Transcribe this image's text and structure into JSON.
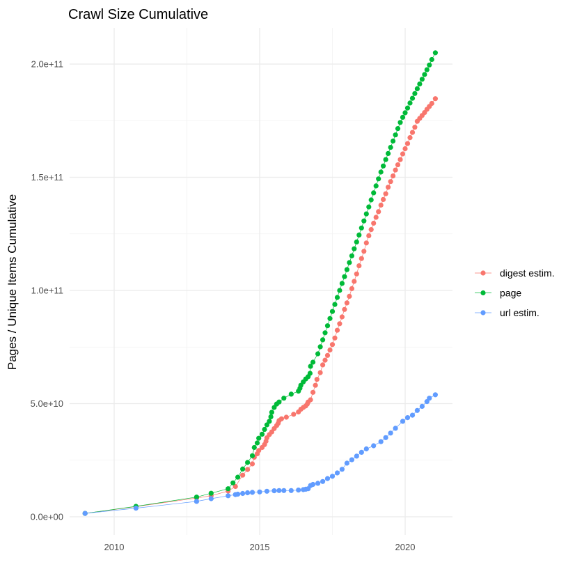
{
  "chart_data": {
    "type": "line",
    "title": "Crawl Size Cumulative",
    "xlabel": "",
    "ylabel": "Pages / Unique Items Cumulative",
    "x_ticks": [
      "2010",
      "2015",
      "2020"
    ],
    "y_ticks": [
      "0.0e+00",
      "5.0e+10",
      "1.0e+11",
      "1.5e+11",
      "2.0e+11"
    ],
    "y_tick_values": [
      0,
      50000000000.0,
      100000000000.0,
      150000000000.0,
      200000000000.0
    ],
    "x_tick_values": [
      "2010-01",
      "2015-01",
      "2020-01"
    ],
    "xlim": [
      "2008-07",
      "2021-08"
    ],
    "ylim": [
      -8000000000.0,
      216000000000.0
    ],
    "grid": true,
    "markers": true,
    "legend_position": "right",
    "series": [
      {
        "name": "digest estim.",
        "color": "#F8766D",
        "points": [
          [
            "2009-01",
            1500000000.0
          ],
          [
            "2010-10",
            4500000000.0
          ],
          [
            "2012-11",
            8300000000.0
          ],
          [
            "2013-05",
            9300000000.0
          ],
          [
            "2013-12",
            11400000000.0
          ],
          [
            "2014-03",
            13400000000.0
          ],
          [
            "2014-06",
            18400000000.0
          ],
          [
            "2014-08",
            20900000000.0
          ],
          [
            "2014-10",
            23400000000.0
          ],
          [
            "2014-10-25",
            26300000000.0
          ],
          [
            "2014-12",
            27800000000.0
          ],
          [
            "2014-12-20",
            29300000000.0
          ],
          [
            "2015-02",
            30600000000.0
          ],
          [
            "2015-03",
            31900000000.0
          ],
          [
            "2015-03-20",
            33400000000.0
          ],
          [
            "2015-04",
            34900000000.0
          ],
          [
            "2015-05",
            36300000000.0
          ],
          [
            "2015-06",
            37500000000.0
          ],
          [
            "2015-07",
            39000000000.0
          ],
          [
            "2015-08",
            40300000000.0
          ],
          [
            "2015-08-20",
            41300000000.0
          ],
          [
            "2015-09",
            42500000000.0
          ],
          [
            "2015-10",
            43300000000.0
          ],
          [
            "2015-12",
            44000000000.0
          ],
          [
            "2016-03",
            45300000000.0
          ],
          [
            "2016-05",
            46300000000.0
          ],
          [
            "2016-06",
            47500000000.0
          ],
          [
            "2016-07",
            48300000000.0
          ],
          [
            "2016-08",
            49000000000.0
          ],
          [
            "2016-08-20",
            49800000000.0
          ],
          [
            "2016-09",
            50700000000.0
          ],
          [
            "2016-10",
            51700000000.0
          ],
          [
            "2016-11",
            55000000000.0
          ],
          [
            "2016-12",
            58100000000.0
          ],
          [
            "2016-12-20",
            60700000000.0
          ],
          [
            "2017-02",
            63700000000.0
          ],
          [
            "2017-03",
            67100000000.0
          ],
          [
            "2017-04",
            69200000000.0
          ],
          [
            "2017-05",
            71300000000.0
          ],
          [
            "2017-06",
            73700000000.0
          ],
          [
            "2017-07",
            76100000000.0
          ],
          [
            "2017-08",
            79000000000.0
          ],
          [
            "2017-09",
            82400000000.0
          ],
          [
            "2017-10",
            85300000000.0
          ],
          [
            "2017-11",
            88300000000.0
          ],
          [
            "2017-12",
            91600000000.0
          ],
          [
            "2018-01",
            94500000000.0
          ],
          [
            "2018-02",
            97400000000.0
          ],
          [
            "2018-03",
            100800000000.0
          ],
          [
            "2018-04",
            104000000000.0
          ],
          [
            "2018-05",
            107300000000.0
          ],
          [
            "2018-06",
            110900000000.0
          ],
          [
            "2018-07",
            114100000000.0
          ],
          [
            "2018-08",
            117300000000.0
          ],
          [
            "2018-09",
            121000000000.0
          ],
          [
            "2018-10",
            124200000000.0
          ],
          [
            "2018-11",
            126900000000.0
          ],
          [
            "2018-12",
            129700000000.0
          ],
          [
            "2019-01",
            132300000000.0
          ],
          [
            "2019-02",
            134800000000.0
          ],
          [
            "2019-03",
            137700000000.0
          ],
          [
            "2019-04",
            140200000000.0
          ],
          [
            "2019-05",
            142700000000.0
          ],
          [
            "2019-06",
            145600000000.0
          ],
          [
            "2019-07",
            148100000000.0
          ],
          [
            "2019-08",
            150600000000.0
          ],
          [
            "2019-09",
            153200000000.0
          ],
          [
            "2019-10",
            155500000000.0
          ],
          [
            "2019-11",
            157800000000.0
          ],
          [
            "2019-12",
            160300000000.0
          ],
          [
            "2020-01",
            162600000000.0
          ],
          [
            "2020-02",
            164900000000.0
          ],
          [
            "2020-03",
            167500000000.0
          ],
          [
            "2020-04",
            169800000000.0
          ],
          [
            "2020-05",
            172100000000.0
          ],
          [
            "2020-06",
            174700000000.0
          ],
          [
            "2020-07",
            176000000000.0
          ],
          [
            "2020-08",
            177300000000.0
          ],
          [
            "2020-09",
            178600000000.0
          ],
          [
            "2020-10",
            180000000000.0
          ],
          [
            "2020-11",
            181300000000.0
          ],
          [
            "2020-12",
            182600000000.0
          ],
          [
            "2021-01-15",
            184700000000.0
          ]
        ]
      },
      {
        "name": "page",
        "color": "#00BA38",
        "points": [
          [
            "2009-01",
            1500000000.0
          ],
          [
            "2010-10",
            4600000000.0
          ],
          [
            "2012-11",
            8700000000.0
          ],
          [
            "2013-05",
            10400000000.0
          ],
          [
            "2013-12",
            12400000000.0
          ],
          [
            "2014-02",
            15000000000.0
          ],
          [
            "2014-04",
            17500000000.0
          ],
          [
            "2014-06",
            21100000000.0
          ],
          [
            "2014-08",
            24000000000.0
          ],
          [
            "2014-10",
            27000000000.0
          ],
          [
            "2014-10-25",
            30600000000.0
          ],
          [
            "2014-12",
            32600000000.0
          ],
          [
            "2014-12-20",
            34700000000.0
          ],
          [
            "2015-02",
            36500000000.0
          ],
          [
            "2015-03",
            38600000000.0
          ],
          [
            "2015-04",
            40600000000.0
          ],
          [
            "2015-05",
            42200000000.0
          ],
          [
            "2015-05-20",
            44200000000.0
          ],
          [
            "2015-06",
            46200000000.0
          ],
          [
            "2015-07",
            48300000000.0
          ],
          [
            "2015-08",
            49800000000.0
          ],
          [
            "2015-09",
            50700000000.0
          ],
          [
            "2015-11",
            52400000000.0
          ],
          [
            "2016-02",
            54200000000.0
          ],
          [
            "2016-05",
            55500000000.0
          ],
          [
            "2016-05-20",
            56800000000.0
          ],
          [
            "2016-06",
            58100000000.0
          ],
          [
            "2016-07",
            59600000000.0
          ],
          [
            "2016-08",
            60900000000.0
          ],
          [
            "2016-09",
            61900000000.0
          ],
          [
            "2016-09-25",
            63400000000.0
          ],
          [
            "2016-10",
            66500000000.0
          ],
          [
            "2016-11",
            68300000000.0
          ],
          [
            "2017-01",
            72000000000.0
          ],
          [
            "2017-02",
            75100000000.0
          ],
          [
            "2017-03",
            78200000000.0
          ],
          [
            "2017-04",
            81300000000.0
          ],
          [
            "2017-05",
            84400000000.0
          ],
          [
            "2017-06",
            87600000000.0
          ],
          [
            "2017-07",
            90700000000.0
          ],
          [
            "2017-08",
            93800000000.0
          ],
          [
            "2017-09",
            96900000000.0
          ],
          [
            "2017-10",
            100000000000.0
          ],
          [
            "2017-11",
            103100000000.0
          ],
          [
            "2017-12",
            106100000000.0
          ],
          [
            "2018-01",
            109200000000.0
          ],
          [
            "2018-02",
            112300000000.0
          ],
          [
            "2018-03",
            115300000000.0
          ],
          [
            "2018-04",
            118400000000.0
          ],
          [
            "2018-05",
            121400000000.0
          ],
          [
            "2018-06",
            124500000000.0
          ],
          [
            "2018-07",
            127600000000.0
          ],
          [
            "2018-08",
            130700000000.0
          ],
          [
            "2018-09",
            133800000000.0
          ],
          [
            "2018-10",
            136900000000.0
          ],
          [
            "2018-11",
            140000000000.0
          ],
          [
            "2018-12",
            143100000000.0
          ],
          [
            "2019-01",
            146200000000.0
          ],
          [
            "2019-02",
            149300000000.0
          ],
          [
            "2019-03",
            152300000000.0
          ],
          [
            "2019-04",
            155000000000.0
          ],
          [
            "2019-05",
            157800000000.0
          ],
          [
            "2019-06",
            160500000000.0
          ],
          [
            "2019-07",
            163200000000.0
          ],
          [
            "2019-08",
            166000000000.0
          ],
          [
            "2019-09",
            168700000000.0
          ],
          [
            "2019-10",
            171500000000.0
          ],
          [
            "2019-11",
            174200000000.0
          ],
          [
            "2019-12",
            176500000000.0
          ],
          [
            "2020-01",
            178500000000.0
          ],
          [
            "2020-02",
            180600000000.0
          ],
          [
            "2020-03",
            182800000000.0
          ],
          [
            "2020-04",
            184900000000.0
          ],
          [
            "2020-05",
            187000000000.0
          ],
          [
            "2020-06",
            189100000000.0
          ],
          [
            "2020-07",
            191200000000.0
          ],
          [
            "2020-08",
            193300000000.0
          ],
          [
            "2020-09",
            195400000000.0
          ],
          [
            "2020-10",
            197500000000.0
          ],
          [
            "2020-11",
            199600000000.0
          ],
          [
            "2020-12",
            202000000000.0
          ],
          [
            "2021-01-15",
            205000000000.0
          ]
        ]
      },
      {
        "name": "url estim.",
        "color": "#619CFF",
        "points": [
          [
            "2009-01",
            1500000000.0
          ],
          [
            "2010-10",
            3800000000.0
          ],
          [
            "2012-11",
            6800000000.0
          ],
          [
            "2013-05",
            8000000000.0
          ],
          [
            "2013-12",
            9300000000.0
          ],
          [
            "2014-03",
            9800000000.0
          ],
          [
            "2014-04",
            10000000000.0
          ],
          [
            "2014-06",
            10300000000.0
          ],
          [
            "2014-08",
            10600000000.0
          ],
          [
            "2014-10",
            10800000000.0
          ],
          [
            "2015-01",
            11000000000.0
          ],
          [
            "2015-04",
            11300000000.0
          ],
          [
            "2015-07",
            11500000000.0
          ],
          [
            "2015-09",
            11600000000.0
          ],
          [
            "2015-11",
            11600000000.0
          ],
          [
            "2016-02",
            11600000000.0
          ],
          [
            "2016-05",
            11800000000.0
          ],
          [
            "2016-07",
            12000000000.0
          ],
          [
            "2016-08",
            12200000000.0
          ],
          [
            "2016-09",
            12400000000.0
          ],
          [
            "2016-10",
            13800000000.0
          ],
          [
            "2016-11",
            14300000000.0
          ],
          [
            "2017-01",
            14800000000.0
          ],
          [
            "2017-03",
            15600000000.0
          ],
          [
            "2017-05",
            16900000000.0
          ],
          [
            "2017-07",
            17900000000.0
          ],
          [
            "2017-09",
            19400000000.0
          ],
          [
            "2017-11",
            21000000000.0
          ],
          [
            "2018-01",
            23700000000.0
          ],
          [
            "2018-03",
            25200000000.0
          ],
          [
            "2018-05",
            26800000000.0
          ],
          [
            "2018-07",
            28500000000.0
          ],
          [
            "2018-09",
            30000000000.0
          ],
          [
            "2018-12",
            31400000000.0
          ],
          [
            "2019-03",
            33200000000.0
          ],
          [
            "2019-05",
            35000000000.0
          ],
          [
            "2019-07",
            37000000000.0
          ],
          [
            "2019-09",
            39100000000.0
          ],
          [
            "2019-12",
            42200000000.0
          ],
          [
            "2020-02",
            43800000000.0
          ],
          [
            "2020-04",
            44900000000.0
          ],
          [
            "2020-06",
            47000000000.0
          ],
          [
            "2020-08",
            48800000000.0
          ],
          [
            "2020-10",
            50900000000.0
          ],
          [
            "2020-11",
            52400000000.0
          ],
          [
            "2021-01-15",
            53900000000.0
          ]
        ]
      }
    ]
  }
}
